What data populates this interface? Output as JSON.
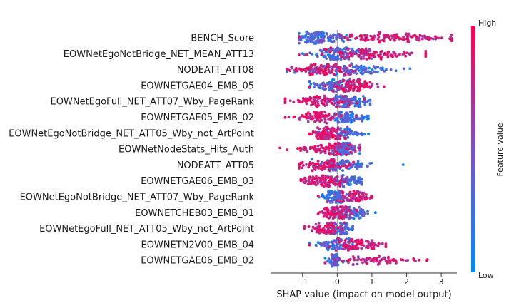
{
  "chart_data": {
    "type": "scatter",
    "subtype": "shap-beeswarm-summary",
    "xlabel": "SHAP value (impact on model output)",
    "xlim": [
      -1.9,
      3.45
    ],
    "xticks": [
      -1,
      0,
      1,
      2,
      3
    ],
    "colorbar": {
      "label": "Feature value",
      "high_label": "High",
      "low_label": "Low",
      "low_color": "#008bfb",
      "high_color": "#ff0052"
    },
    "features": [
      {
        "name": "BENCH_Score",
        "min": -1.1,
        "max": 3.3,
        "low_center": -0.45,
        "high_center": 1.6,
        "spread_low": 0.35,
        "spread_high": 0.85,
        "density": 1.0
      },
      {
        "name": "EOWNetEgoNotBridge_NET_MEAN_ATT13",
        "min": -1.1,
        "max": 2.55,
        "low_center": 0.05,
        "high_center": 0.9,
        "spread_low": 0.35,
        "spread_high": 0.7,
        "density": 0.9,
        "high_side": "both"
      },
      {
        "name": "NODEATT_ATT08",
        "min": -1.45,
        "max": 2.1,
        "low_center": 0.4,
        "high_center": -0.5,
        "spread_low": 0.55,
        "spread_high": 0.45,
        "density": 0.85
      },
      {
        "name": "EOWNETGAE04_EMB_05",
        "min": -0.8,
        "max": 1.35,
        "low_center": -0.15,
        "high_center": 0.5,
        "spread_low": 0.3,
        "spread_high": 0.3,
        "density": 0.8
      },
      {
        "name": "EOWNetEgoFull_NET_ATT07_Wby_PageRank",
        "min": -1.5,
        "max": 0.95,
        "low_center": 0.3,
        "high_center": -0.45,
        "spread_low": 0.3,
        "spread_high": 0.45,
        "density": 0.75
      },
      {
        "name": "EOWNETGAE05_EMB_02",
        "min": -1.5,
        "max": 0.9,
        "low_center": 0.3,
        "high_center": -0.55,
        "spread_low": 0.25,
        "spread_high": 0.4,
        "density": 0.75
      },
      {
        "name": "EOWNetEgoNotBridge_NET_ATT05_Wby_not_ArtPoint",
        "min": -0.8,
        "max": 0.9,
        "low_center": 0.2,
        "high_center": -0.3,
        "spread_low": 0.3,
        "spread_high": 0.25,
        "density": 0.7
      },
      {
        "name": "EOWNetNodeStats_Hits_Auth",
        "min": -1.65,
        "max": 0.65,
        "low_center": 0.2,
        "high_center": -0.25,
        "spread_low": 0.15,
        "spread_high": 0.5,
        "density": 0.75
      },
      {
        "name": "NODEATT_ATT05",
        "min": -1.1,
        "max": 1.9,
        "low_center": 0.1,
        "high_center": -0.35,
        "spread_low": 0.45,
        "spread_high": 0.4,
        "density": 0.7
      },
      {
        "name": "EOWNETGAE06_EMB_03",
        "min": -1.05,
        "max": 0.7,
        "low_center": 0.3,
        "high_center": -0.45,
        "spread_low": 0.25,
        "spread_high": 0.3,
        "density": 0.65
      },
      {
        "name": "EOWNetEgoNotBridge_NET_ATT07_Wby_PageRank",
        "min": -0.55,
        "max": 1.0,
        "low_center": -0.05,
        "high_center": 0.5,
        "spread_low": 0.2,
        "spread_high": 0.25,
        "density": 0.6
      },
      {
        "name": "EOWNETCHEB03_EMB_01",
        "min": -0.55,
        "max": 1.1,
        "low_center": 0.4,
        "high_center": 0.0,
        "spread_low": 0.3,
        "spread_high": 0.25,
        "density": 0.75
      },
      {
        "name": "EOWNetEgoFull_NET_ATT05_Wby_not_ArtPoint",
        "min": -0.95,
        "max": 0.45,
        "low_center": 0.1,
        "high_center": -0.35,
        "spread_low": 0.15,
        "spread_high": 0.25,
        "density": 0.55
      },
      {
        "name": "EOWNETN2V00_EMB_04",
        "min": -0.8,
        "max": 1.4,
        "low_center": -0.1,
        "high_center": 0.6,
        "spread_low": 0.3,
        "spread_high": 0.35,
        "density": 0.65
      },
      {
        "name": "EOWNETGAE06_EMB_02",
        "min": -0.35,
        "max": 2.6,
        "low_center": -0.1,
        "high_center": 1.2,
        "spread_low": 0.12,
        "spread_high": 0.6,
        "density": 0.55
      }
    ]
  }
}
